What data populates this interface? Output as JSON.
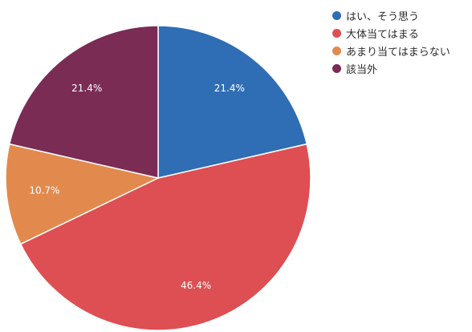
{
  "chart_data": {
    "type": "pie",
    "title": "",
    "categories": [
      "はい、そう思う",
      "大体当てはまる",
      "あまり当てはまらない",
      "該当外"
    ],
    "values": [
      21.4,
      46.4,
      10.7,
      21.4
    ],
    "labels": [
      "21.4%",
      "46.4%",
      "10.7%",
      "21.4%"
    ],
    "colors": [
      "#2f6db5",
      "#dd4f52",
      "#e28a4d",
      "#7a2c55"
    ],
    "start_angle_deg": 0,
    "direction": "clockwise",
    "legend_position": "top-right"
  }
}
